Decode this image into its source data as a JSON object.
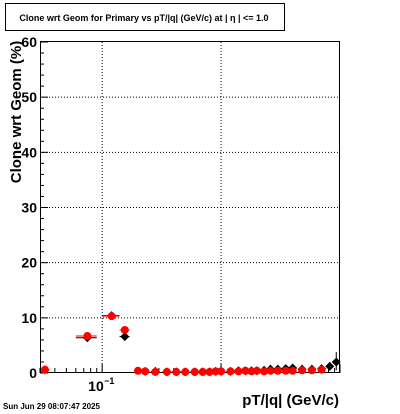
{
  "chart_data": {
    "type": "scatter",
    "title": "Clone wrt Geom for Primary vs pT/|q| (GeV/c) at |  η  | <= 1.0",
    "xlabel": "pT/|q| (GeV/c)",
    "ylabel": "Clone wrt Geom (%)",
    "xscale": "log",
    "xlim": [
      0.03,
      10
    ],
    "ylim": [
      0,
      60
    ],
    "yticks": [
      0,
      10,
      20,
      30,
      40,
      50,
      60
    ],
    "ytick_labels": [
      "0",
      "10",
      "20",
      "30",
      "40",
      "50",
      "60"
    ],
    "xtick_label_main": "10",
    "xtick_label_exp": "−1",
    "grid": true,
    "legend": "none",
    "timestamp": "Sun Jun 29 08:07:47 2025",
    "series": [
      {
        "color": "#000000",
        "marker": "diamond",
        "points": [
          {
            "x": 0.033,
            "y": 0.6,
            "xerr": [
              0.03,
              0.036
            ]
          },
          {
            "x": 0.075,
            "y": 6.4,
            "xerr": [
              0.06,
              0.09
            ]
          },
          {
            "x": 0.12,
            "y": 10.4,
            "xerr": [
              0.1,
              0.14
            ]
          },
          {
            "x": 0.155,
            "y": 6.6,
            "xerr": [
              0.14,
              0.17
            ]
          },
          {
            "x": 0.23,
            "y": 0.3
          },
          {
            "x": 0.28,
            "y": 0.3
          },
          {
            "x": 0.35,
            "y": 0.2
          },
          {
            "x": 0.42,
            "y": 0.2
          },
          {
            "x": 0.5,
            "y": 0.2
          },
          {
            "x": 0.6,
            "y": 0.2
          },
          {
            "x": 0.7,
            "y": 0.2
          },
          {
            "x": 0.8,
            "y": 0.2
          },
          {
            "x": 0.9,
            "y": 0.3
          },
          {
            "x": 1.0,
            "y": 0.3
          },
          {
            "x": 1.2,
            "y": 0.3
          },
          {
            "x": 1.4,
            "y": 0.4
          },
          {
            "x": 1.6,
            "y": 0.4
          },
          {
            "x": 1.8,
            "y": 0.4
          },
          {
            "x": 2.0,
            "y": 0.4
          },
          {
            "x": 2.3,
            "y": 0.5
          },
          {
            "x": 2.6,
            "y": 0.7
          },
          {
            "x": 3.0,
            "y": 0.7
          },
          {
            "x": 3.5,
            "y": 0.8
          },
          {
            "x": 4.0,
            "y": 0.9
          },
          {
            "x": 4.8,
            "y": 0.7
          },
          {
            "x": 5.8,
            "y": 0.7
          },
          {
            "x": 7.0,
            "y": 0.8
          },
          {
            "x": 8.2,
            "y": 1.2,
            "yerr": [
              0.5,
              2.0
            ]
          },
          {
            "x": 9.3,
            "y": 2.0,
            "yerr": [
              0.5,
              3.8
            ]
          }
        ]
      },
      {
        "color": "#ff0000",
        "marker": "circle",
        "points": [
          {
            "x": 0.033,
            "y": 0.6
          },
          {
            "x": 0.075,
            "y": 6.7,
            "xerr": [
              0.06,
              0.09
            ]
          },
          {
            "x": 0.12,
            "y": 10.3,
            "xerr": [
              0.1,
              0.14
            ]
          },
          {
            "x": 0.155,
            "y": 7.8,
            "xerr": [
              0.14,
              0.17
            ]
          },
          {
            "x": 0.2,
            "y": 0.4
          },
          {
            "x": 0.23,
            "y": 0.3
          },
          {
            "x": 0.28,
            "y": 0.2
          },
          {
            "x": 0.35,
            "y": 0.2
          },
          {
            "x": 0.42,
            "y": 0.2
          },
          {
            "x": 0.5,
            "y": 0.2
          },
          {
            "x": 0.6,
            "y": 0.2
          },
          {
            "x": 0.7,
            "y": 0.2
          },
          {
            "x": 0.8,
            "y": 0.2
          },
          {
            "x": 0.9,
            "y": 0.3
          },
          {
            "x": 1.0,
            "y": 0.3
          },
          {
            "x": 1.2,
            "y": 0.3
          },
          {
            "x": 1.4,
            "y": 0.3
          },
          {
            "x": 1.6,
            "y": 0.4
          },
          {
            "x": 1.8,
            "y": 0.3
          },
          {
            "x": 2.0,
            "y": 0.4
          },
          {
            "x": 2.3,
            "y": 0.3
          },
          {
            "x": 2.6,
            "y": 0.4
          },
          {
            "x": 3.0,
            "y": 0.4
          },
          {
            "x": 3.5,
            "y": 0.4
          },
          {
            "x": 4.0,
            "y": 0.4
          },
          {
            "x": 4.8,
            "y": 0.5
          },
          {
            "x": 5.8,
            "y": 0.5
          },
          {
            "x": 7.0,
            "y": 0.6
          }
        ]
      }
    ]
  }
}
